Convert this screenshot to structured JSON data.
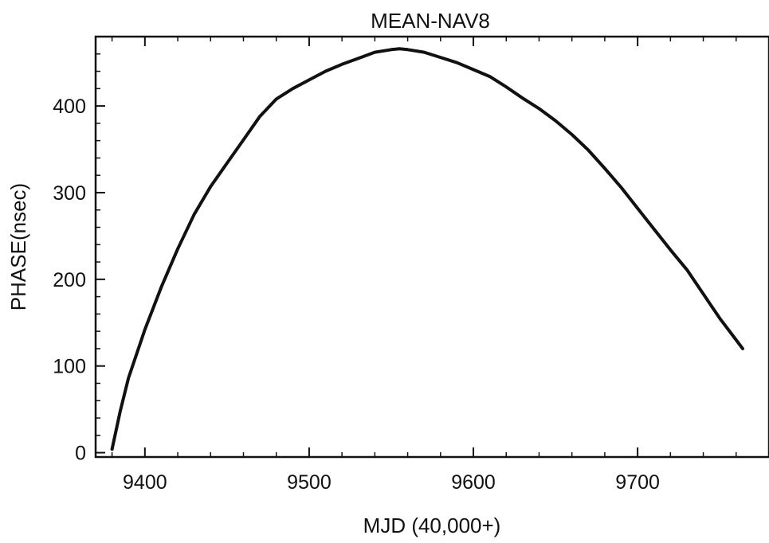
{
  "chart_data": {
    "type": "line",
    "title": "MEAN-NAV8",
    "xlabel": "MJD (40,000+)",
    "ylabel": "PHASE(nsec)",
    "xlim": [
      9370,
      9780
    ],
    "ylim": [
      -5,
      480
    ],
    "x_ticks": [
      9400,
      9500,
      9600,
      9700
    ],
    "y_ticks": [
      0,
      100,
      200,
      300,
      400
    ],
    "x_tick_labels": [
      "9400",
      "9500",
      "9600",
      "9700"
    ],
    "y_tick_labels": [
      "0",
      "100",
      "200",
      "300",
      "400"
    ],
    "grid": false,
    "legend": "none",
    "line_color": "#111111",
    "series": [
      {
        "x": [
          9380,
          9385,
          9390,
          9400,
          9410,
          9420,
          9430,
          9440,
          9450,
          9460,
          9470,
          9480,
          9490,
          9500,
          9510,
          9520,
          9530,
          9540,
          9550,
          9555,
          9560,
          9570,
          9580,
          9590,
          9600,
          9610,
          9620,
          9630,
          9640,
          9650,
          9660,
          9670,
          9680,
          9690,
          9700,
          9710,
          9720,
          9730,
          9740,
          9750,
          9760,
          9764
        ],
        "y": [
          4,
          48,
          86,
          142,
          191,
          235,
          275,
          307,
          334,
          361,
          388,
          408,
          420,
          430,
          440,
          448,
          455,
          462,
          465,
          466,
          465,
          462,
          456,
          450,
          442,
          434,
          422,
          409,
          397,
          383,
          367,
          349,
          328,
          306,
          282,
          258,
          234,
          211,
          183,
          155,
          130,
          120
        ]
      }
    ]
  }
}
